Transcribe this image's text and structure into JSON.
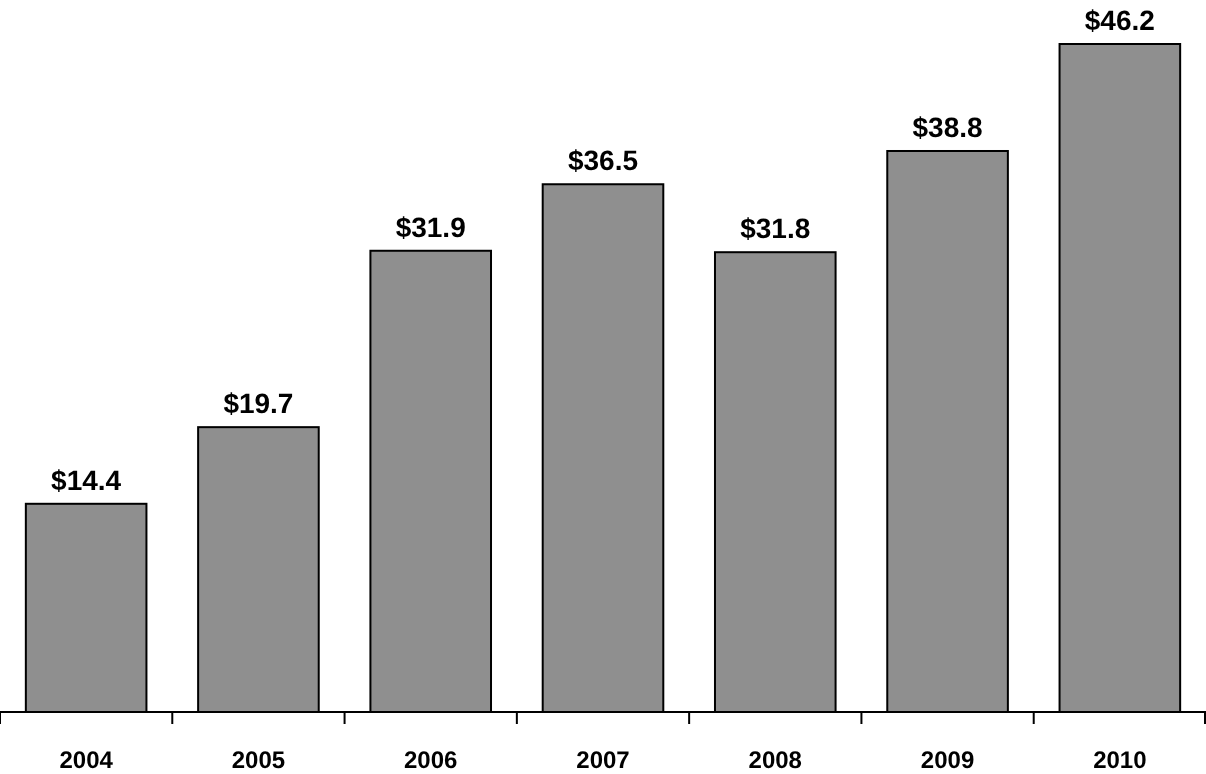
{
  "chart_data": {
    "type": "bar",
    "categories": [
      "2004",
      "2005",
      "2006",
      "2007",
      "2008",
      "2009",
      "2010"
    ],
    "values": [
      14.4,
      19.7,
      31.9,
      36.5,
      31.8,
      38.8,
      46.2
    ],
    "value_labels": [
      "$14.4",
      "$19.7",
      "$31.9",
      "$36.5",
      "$31.8",
      "$38.8",
      "$46.2"
    ],
    "color": "#8f8f8f"
  }
}
